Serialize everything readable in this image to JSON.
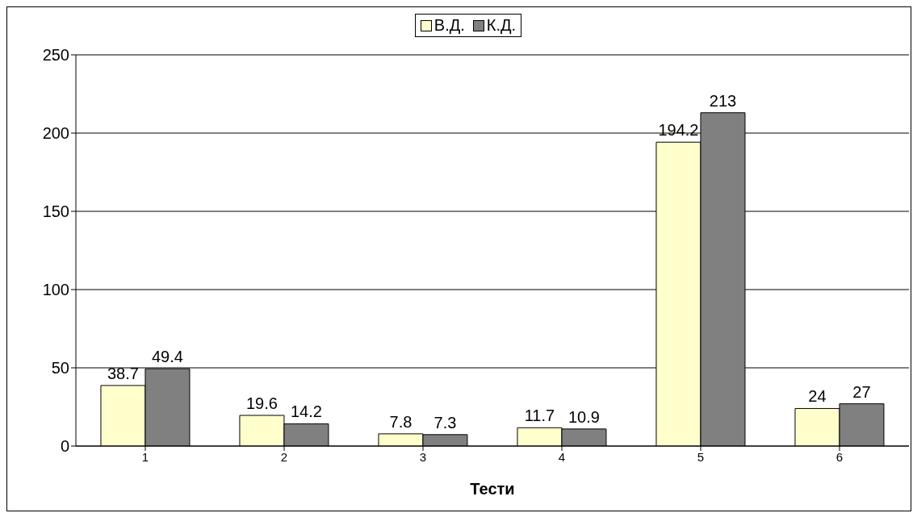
{
  "chart_data": {
    "type": "bar",
    "xlabel": "Тести",
    "categories": [
      "1",
      "2",
      "3",
      "4",
      "5",
      "6"
    ],
    "series": [
      {
        "name": "В.Д.",
        "color": "#ffffcc",
        "values": [
          38.7,
          19.6,
          7.8,
          11.7,
          194.2,
          24
        ]
      },
      {
        "name": "К.Д.",
        "color": "#808080",
        "values": [
          49.4,
          14.2,
          7.3,
          10.9,
          213,
          27
        ]
      }
    ],
    "ylim": [
      0,
      250
    ],
    "yticks": [
      0,
      50,
      100,
      150,
      200,
      250
    ],
    "grid": "y",
    "legend": "top",
    "data_labels": true
  }
}
